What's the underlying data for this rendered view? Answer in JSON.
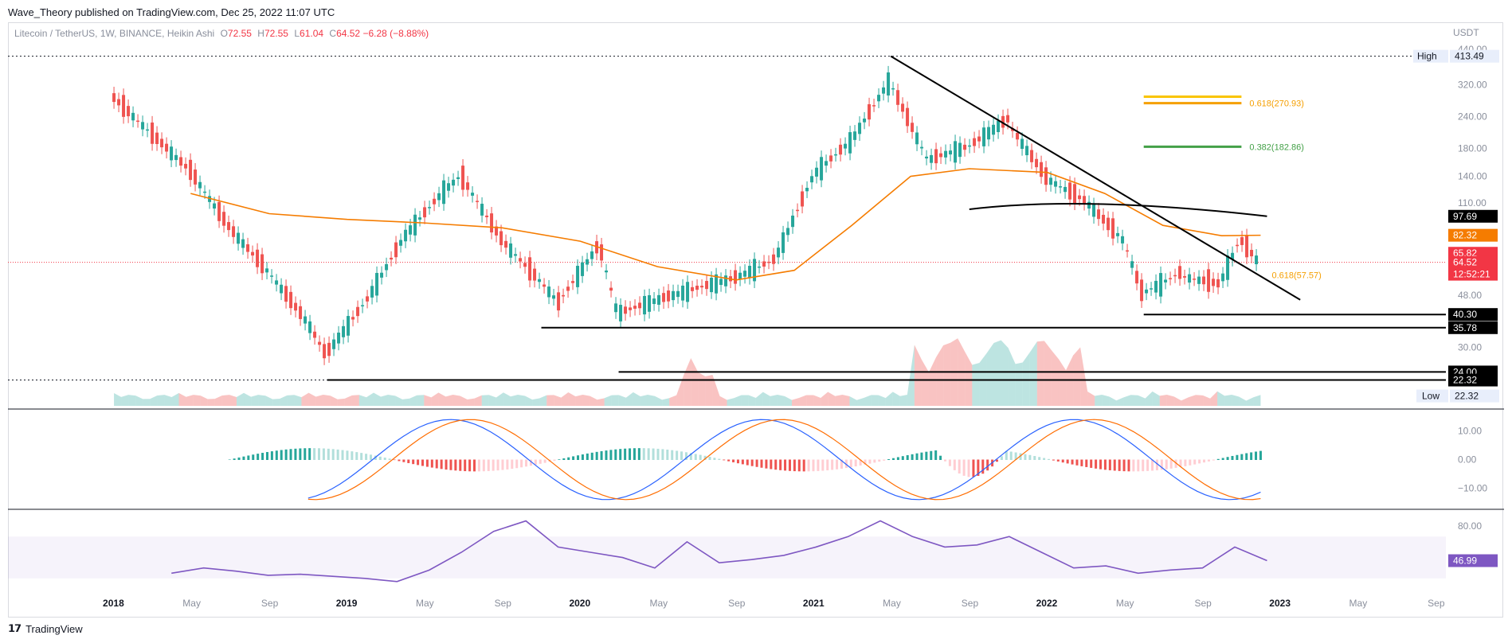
{
  "header": {
    "publisher_line": "Wave_Theory published on TradingView.com, Dec 25, 2022 11:07 UTC"
  },
  "legend": {
    "symbol": "Litecoin / TetherUS, 1W, BINANCE, Heikin Ashi",
    "o_label": "O",
    "o": "72.55",
    "h_label": "H",
    "h": "72.55",
    "l_label": "L",
    "l": "61.04",
    "c_label": "C",
    "c": "64.52",
    "change": "−6.28 (−8.88%)"
  },
  "currency": "USDT",
  "footer": {
    "brand": "TradingView"
  },
  "colors": {
    "bull": "#26a69a",
    "bear": "#ef5350",
    "ma": "#f57c00",
    "trend": "#000000",
    "fib_gold": "#f9c400",
    "fib_orange": "#f59f00",
    "fib_green": "#43a047",
    "macd": "#2962ff",
    "signal": "#ff6d00",
    "rsi": "#7e57c2"
  },
  "chart_data": [
    {
      "type": "line",
      "title": "Litecoin / TetherUS, 1W, BINANCE, Heikin Ashi",
      "scale": "log",
      "ylim": [
        19,
        440
      ],
      "price_ticks": [
        "440.00",
        "320.00",
        "240.00",
        "180.00",
        "140.00",
        "110.00",
        "48.00",
        "30.00"
      ],
      "x_ticks": [
        "2018",
        "May",
        "Sep",
        "2019",
        "May",
        "Sep",
        "2020",
        "May",
        "Sep",
        "2021",
        "May",
        "Sep",
        "2022",
        "May",
        "Sep",
        "2023",
        "May",
        "Sep"
      ],
      "price_path": {
        "x": [
          "2018-01",
          "2018-03",
          "2018-05",
          "2018-07",
          "2018-09",
          "2018-11",
          "2018-12",
          "2019-02",
          "2019-04",
          "2019-06",
          "2019-07",
          "2019-09",
          "2019-11",
          "2019-12",
          "2020-02",
          "2020-03",
          "2020-05",
          "2020-07",
          "2020-09",
          "2020-11",
          "2021-01",
          "2021-03",
          "2021-05",
          "2021-07",
          "2021-09",
          "2021-11",
          "2022-01",
          "2022-03",
          "2022-05",
          "2022-06",
          "2022-08",
          "2022-10",
          "2022-11",
          "2022-12"
        ],
        "y": [
          290,
          210,
          150,
          90,
          60,
          38,
          28,
          45,
          80,
          120,
          140,
          80,
          55,
          45,
          75,
          40,
          45,
          50,
          55,
          65,
          140,
          190,
          330,
          160,
          180,
          230,
          140,
          115,
          80,
          48,
          58,
          54,
          80,
          64.52
        ]
      },
      "moving_average": {
        "x": [
          "2018-05",
          "2018-09",
          "2019-01",
          "2019-05",
          "2019-09",
          "2020-01",
          "2020-05",
          "2020-09",
          "2020-12",
          "2021-03",
          "2021-06",
          "2021-09",
          "2022-01",
          "2022-04",
          "2022-07",
          "2022-10",
          "2022-12"
        ],
        "y": [
          120,
          100,
          95,
          92,
          88,
          78,
          62,
          55,
          60,
          90,
          140,
          150,
          145,
          120,
          90,
          82,
          82.32
        ]
      },
      "annotations": [
        {
          "label": "High",
          "value": "413.49"
        },
        {
          "label": "Low",
          "value": "22.32"
        },
        {
          "label": "0.618(270.93)",
          "value": 270.93
        },
        {
          "label": "0.382(182.86)",
          "value": 182.86
        },
        {
          "label": "0.618(57.57)",
          "value": 57.57
        }
      ],
      "horizontal_levels": [
        413.49,
        40.3,
        35.78,
        24.0,
        22.32
      ],
      "price_labels": [
        {
          "value": "97.69",
          "bg": "#000000"
        },
        {
          "value": "82.32",
          "bg": "#f57c00"
        },
        {
          "value": "65.82",
          "bg": "#f23645"
        },
        {
          "value": "64.52",
          "bg": "#f23645"
        },
        {
          "value": "12:52:21",
          "bg": "#f23645"
        },
        {
          "value": "40.30",
          "bg": "#000000"
        },
        {
          "value": "35.78",
          "bg": "#000000"
        },
        {
          "value": "24.00",
          "bg": "#000000"
        },
        {
          "value": "22.32",
          "bg": "#000000"
        }
      ]
    },
    {
      "type": "bar",
      "title": "Volume"
    },
    {
      "type": "line",
      "title": "MACD",
      "ylim": [
        -16,
        16
      ],
      "y_ticks": [
        "10.00",
        "0.00",
        "−10.00"
      ]
    },
    {
      "type": "line",
      "title": "RSI",
      "ylim": [
        0,
        100
      ],
      "y_ticks": [
        "80.00"
      ],
      "last_value": "46.99",
      "rsi": [
        35,
        40,
        37,
        33,
        34,
        32,
        30,
        27,
        38,
        55,
        75,
        85,
        60,
        55,
        50,
        40,
        65,
        45,
        48,
        52,
        60,
        70,
        85,
        70,
        60,
        62,
        70,
        55,
        40,
        42,
        35,
        38,
        40,
        60,
        47
      ]
    }
  ]
}
